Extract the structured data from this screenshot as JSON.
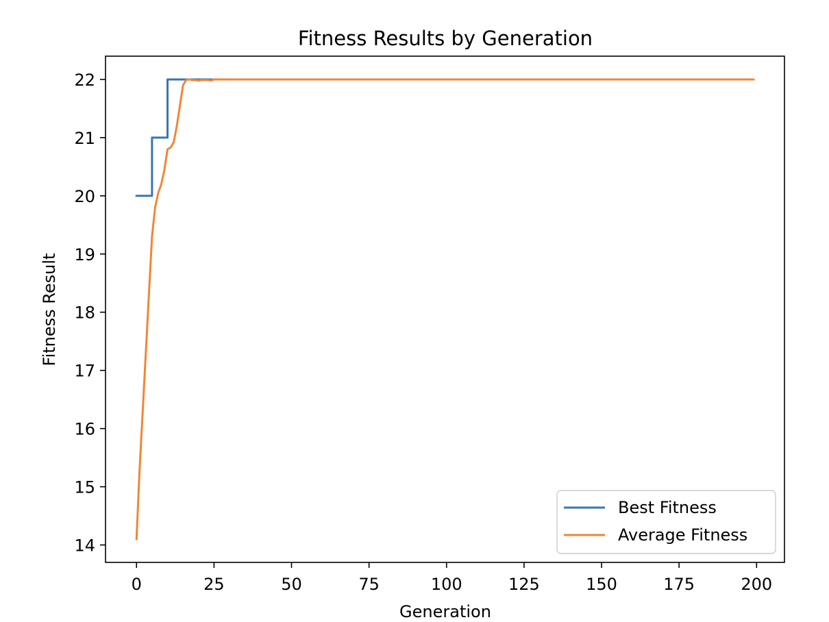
{
  "chart_data": {
    "type": "line",
    "title": "Fitness Results by Generation",
    "xlabel": "Generation",
    "ylabel": "Fitness Result",
    "xlim": [
      -10,
      209
    ],
    "ylim": [
      13.7,
      22.4
    ],
    "xticks": [
      0,
      25,
      50,
      75,
      100,
      125,
      150,
      175,
      200
    ],
    "yticks": [
      14,
      15,
      16,
      17,
      18,
      19,
      20,
      21,
      22
    ],
    "grid": false,
    "legend_placement": "lower-right",
    "series": [
      {
        "name": "Best Fitness",
        "color": "#3a75af",
        "step": true,
        "points": [
          [
            0,
            20
          ],
          [
            4,
            20
          ],
          [
            5,
            21
          ],
          [
            9,
            21
          ],
          [
            10,
            22
          ],
          [
            199,
            22
          ]
        ]
      },
      {
        "name": "Average Fitness",
        "color": "#ef8636",
        "step": false,
        "points": [
          [
            0,
            14.1
          ],
          [
            1,
            15.3
          ],
          [
            2,
            16.3
          ],
          [
            3,
            17.3
          ],
          [
            4,
            18.3
          ],
          [
            5,
            19.3
          ],
          [
            6,
            19.8
          ],
          [
            7,
            20.05
          ],
          [
            8,
            20.2
          ],
          [
            9,
            20.45
          ],
          [
            10,
            20.8
          ],
          [
            11,
            20.83
          ],
          [
            12,
            20.92
          ],
          [
            13,
            21.2
          ],
          [
            14,
            21.55
          ],
          [
            15,
            21.9
          ],
          [
            16,
            21.99
          ],
          [
            17,
            22.0
          ],
          [
            18,
            21.99
          ],
          [
            19,
            21.99
          ],
          [
            20,
            21.98
          ],
          [
            21,
            21.99
          ],
          [
            22,
            21.99
          ],
          [
            23,
            21.99
          ],
          [
            24,
            21.98
          ],
          [
            25,
            22.0
          ],
          [
            199,
            22.0
          ]
        ]
      }
    ]
  }
}
